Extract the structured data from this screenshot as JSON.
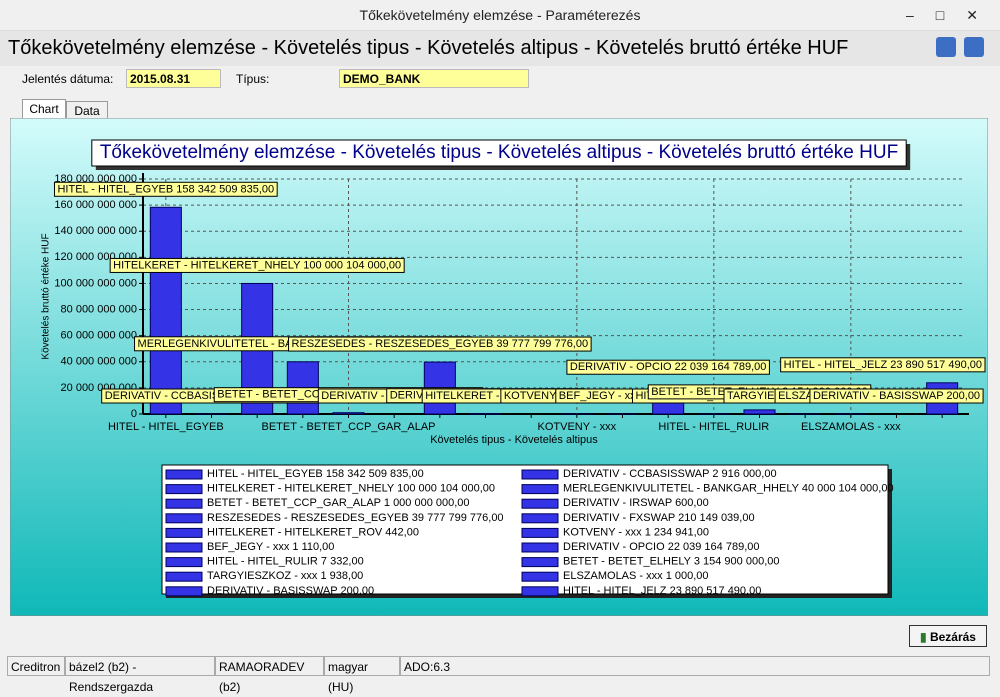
{
  "window": {
    "title": "Tőkekövetelmény elemzése - Paraméterezés"
  },
  "header": {
    "title": "Tőkekövetelmény elemzése - Követelés tipus - Követelés altipus - Követelés bruttó értéke HUF"
  },
  "filters": {
    "date_label": "Jelentés dátuma:",
    "date": "2015.08.31",
    "type_label": "Típus:",
    "type": "DEMO_BANK"
  },
  "tabs": [
    "Chart",
    "Data"
  ],
  "chart_data": {
    "type": "bar",
    "title": "Tőkekövetelmény elemzése - Követelés tipus - Követelés altipus - Követelés bruttó értéke HUF",
    "ylabel": "Követelés bruttó értéke HUF",
    "xlabel": "Követelés tipus - Követelés altipus",
    "categories": [
      "HITEL - HITEL_EGYEB",
      null,
      null,
      null,
      "BETET - BETET_CCP_GAR_ALAP",
      null,
      null,
      null,
      null,
      "KOTVENY - xxx",
      null,
      null,
      "HITEL - HITEL_RULIR",
      null,
      null,
      "ELSZAMOLAS - xxx",
      null,
      null
    ],
    "bar_names": [
      "HITEL - HITEL_EGYEB",
      "DERIVATIV - CCBASISSWAP",
      "HITELKERET - HITELKERET_NHELY",
      "MERLEGENKIVULITETEL - BANKGAR_HHELY",
      "BETET - BETET_CCP_GAR_ALAP",
      "DERIVATIV - IRSWAP",
      "RESZESEDES - RESZESEDES_EGYEB",
      "DERIVATIV - FXSWAP",
      "HITELKERET - HITELKERET_ROV",
      "KOTVENY - xxx",
      "BEF_JEGY - xxx",
      "DERIVATIV - OPCIO",
      "HITEL - HITEL_RULIR",
      "BETET - BETET_ELHELY",
      "TARGYIESZKOZ - xxx",
      "ELSZAMOLAS - xxx",
      "DERIVATIV - BASISSWAP",
      "HITEL - HITEL_JELZ"
    ],
    "values": [
      158342509835,
      2916000,
      100000104000,
      40000104000,
      1000000000,
      600,
      39777799776,
      210149039,
      442,
      1234941,
      1110,
      22039164789,
      7332,
      3154900000,
      1938,
      1000,
      200,
      23890517490
    ],
    "value_labels": [
      "158 342 509 835,00",
      "2 916 000,00",
      "100 000 104 000,00",
      "40 000 104 000,00",
      "1 000 000 000,00",
      "600,00",
      "39 777 799 776,00",
      "210 149 039,00",
      "442,00",
      "1 234 941,00",
      "1 110,00",
      "22 039 164 789,00",
      "7 332,00",
      "3 154 900 000,00",
      "1 938,00",
      "1 000,00",
      "200,00",
      "23 890 517 490,00"
    ],
    "color": "#3434e6",
    "ylim": [
      0,
      180000000000
    ],
    "yticks": [
      0,
      {
        "value": 20000000000,
        "label": "20 000 000 000"
      },
      {
        "value": 40000000000,
        "label": "40 000 000 000"
      },
      {
        "value": 60000000000,
        "label": "60 000 000 000"
      },
      {
        "value": 80000000000,
        "label": "80 000 000 000"
      },
      {
        "value": 100000000000,
        "label": "100 000 000 000"
      },
      {
        "value": 120000000000,
        "label": "120 000 000 000"
      },
      {
        "value": 140000000000,
        "label": "140 000 000 000"
      },
      {
        "value": 160000000000,
        "label": "160 000 000 000"
      },
      {
        "value": 180000000000,
        "label": "180 000 000 000"
      }
    ],
    "grid": true
  },
  "buttons": {
    "close": "Bezárás"
  },
  "status_bar": [
    "Creditron",
    "bázel2 (b2) - Rendszergazda",
    "RAMAORADEV (b2)",
    "magyar (HU)",
    "ADO:6.3"
  ]
}
